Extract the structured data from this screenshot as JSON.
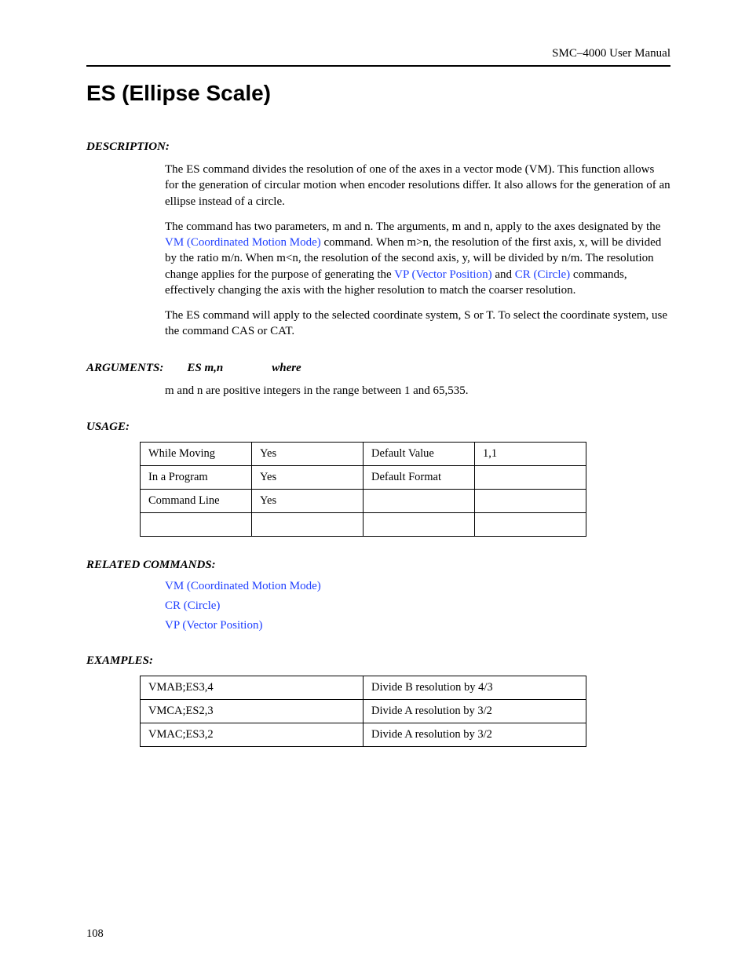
{
  "header": {
    "manual": "SMC–4000 User Manual"
  },
  "title": "ES (Ellipse Scale)",
  "labels": {
    "description": "DESCRIPTION:",
    "arguments": "ARGUMENTS:",
    "usage": "USAGE:",
    "related": "RELATED COMMANDS:",
    "examples": "EXAMPLES:"
  },
  "description": {
    "p1": "The ES command divides the resolution of one of the axes in a vector mode (VM). This function allows for the generation of circular motion when encoder resolutions differ. It also allows for the generation of an ellipse instead of a circle.",
    "p2_a": "The command has two parameters, m and n. The arguments, m and n, apply to the axes designated by the ",
    "p2_link1": "VM (Coordinated Motion Mode)",
    "p2_b": " command. When m>n, the resolution of the first axis, x, will be divided by the ratio m/n. When m<n, the resolution of the second axis, y, will be divided by n/m. The resolution change applies for the purpose of generating the ",
    "p2_link2": "VP (Vector Position)",
    "p2_c": " and ",
    "p2_link3": "CR (Circle)",
    "p2_d": " commands, effectively changing the axis with the higher resolution to match the coarser resolution.",
    "p3": "The ES command will apply to the selected coordinate system, S or T. To select the coordinate system, use the command CAS or CAT."
  },
  "arguments": {
    "syntax": "ES m,n",
    "where": "where",
    "detail": "m and n are positive integers in the range between 1 and 65,535."
  },
  "usage": {
    "rows": [
      [
        "While Moving",
        "Yes",
        "Default Value",
        "1,1"
      ],
      [
        "In a Program",
        "Yes",
        "Default Format",
        ""
      ],
      [
        "Command Line",
        "Yes",
        "",
        ""
      ],
      [
        "",
        "",
        "",
        ""
      ]
    ]
  },
  "related": [
    "VM (Coordinated Motion Mode)",
    "CR (Circle)",
    "VP (Vector Position)"
  ],
  "examples": {
    "rows": [
      [
        "VMAB;ES3,4",
        "Divide B resolution by 4/3"
      ],
      [
        "VMCA;ES2,3",
        "Divide A resolution by 3/2"
      ],
      [
        "VMAC;ES3,2",
        "Divide A resolution by 3/2"
      ]
    ]
  },
  "page_number": "108"
}
